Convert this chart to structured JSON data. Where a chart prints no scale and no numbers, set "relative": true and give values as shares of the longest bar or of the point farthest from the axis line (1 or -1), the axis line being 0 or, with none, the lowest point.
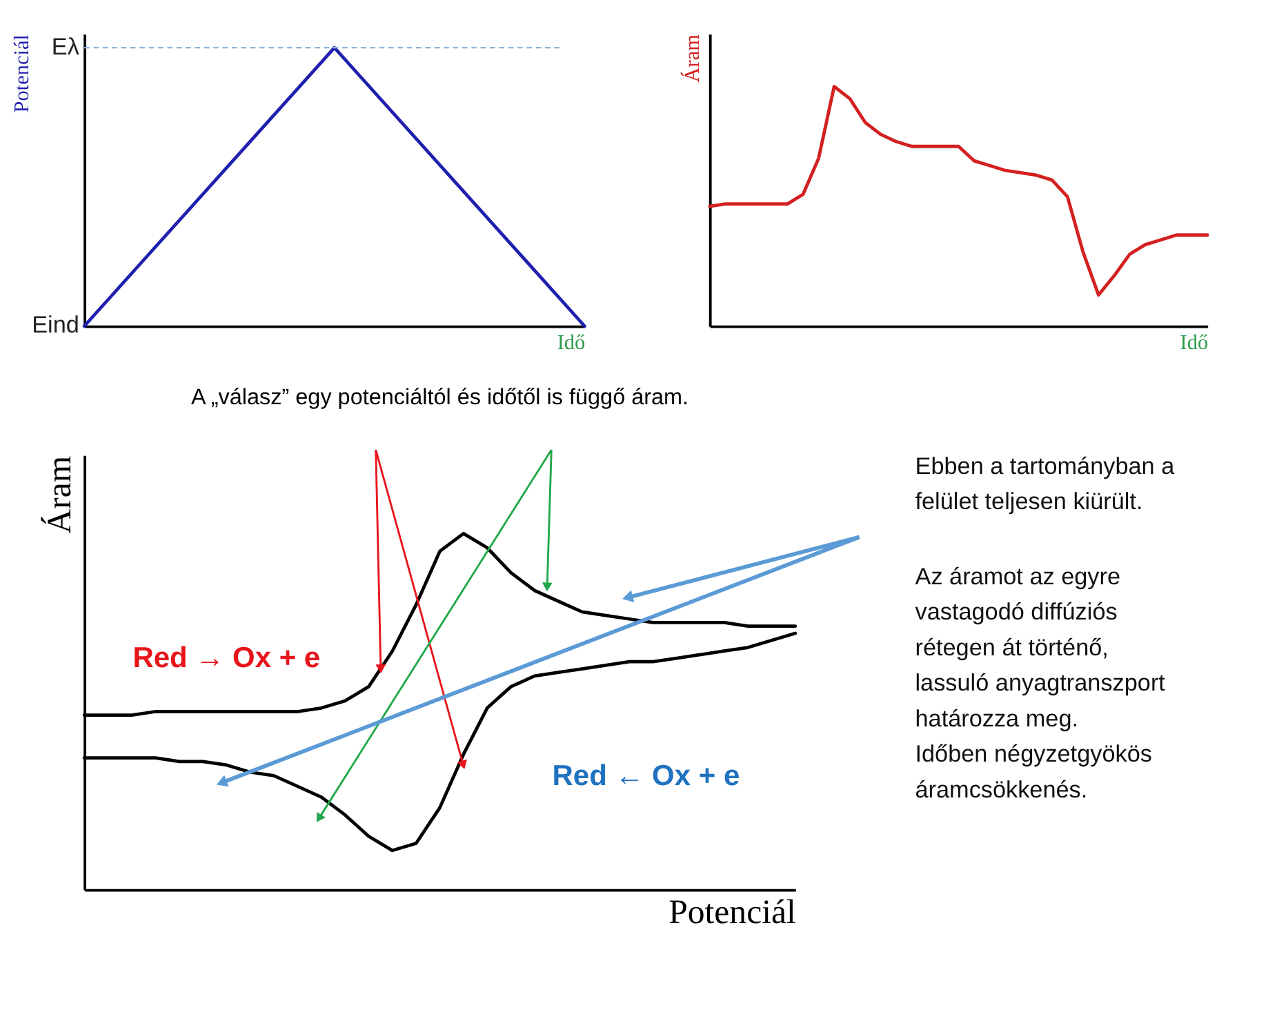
{
  "chart_data": [
    {
      "type": "line",
      "categories": [
        null,
        null,
        null
      ],
      "values": [
        0,
        1,
        0
      ],
      "color": "#1f1fb0",
      "relative": true,
      "annotations": [
        "Eind",
        "Eλ"
      ],
      "xlabel": "Idő",
      "ylabel": "Potenciál",
      "ref_lines": [
        {
          "axis": "y",
          "value": 1,
          "color": "#8fb3d9",
          "line_style": "dashed"
        }
      ]
    },
    {
      "type": "line",
      "relative": true,
      "categories": [
        null,
        null,
        null,
        null,
        null,
        null,
        null,
        null,
        null,
        null,
        null,
        null,
        null,
        null,
        null,
        null,
        null,
        null,
        null,
        null,
        null,
        null,
        null,
        null,
        null,
        null,
        null,
        null,
        null,
        null,
        null,
        null,
        null
      ],
      "values": [
        0.5,
        0.51,
        0.51,
        0.51,
        0.51,
        0.51,
        0.55,
        0.7,
        1.0,
        0.95,
        0.85,
        0.8,
        0.77,
        0.75,
        0.75,
        0.75,
        0.75,
        0.69,
        0.67,
        0.65,
        0.64,
        0.63,
        0.61,
        0.54,
        0.31,
        0.13,
        0.21,
        0.3,
        0.34,
        0.36,
        0.38,
        0.38,
        0.38
      ],
      "color": "#d42020",
      "xlabel": "Idő",
      "ylabel": "Áram"
    },
    {
      "type": "line",
      "relative": true,
      "title": "A „válasz” egy potenciáltól és időtől is függő áram.",
      "categories": [
        null,
        null,
        null,
        null,
        null,
        null,
        null,
        null,
        null,
        null,
        null,
        null,
        null,
        null,
        null,
        null,
        null,
        null,
        null,
        null,
        null,
        null,
        null,
        null,
        null,
        null,
        null,
        null,
        null,
        null,
        null
      ],
      "series": [
        {
          "color": "#000000",
          "values": [
            0.49,
            0.49,
            0.49,
            0.5,
            0.5,
            0.5,
            0.5,
            0.5,
            0.5,
            0.5,
            0.51,
            0.53,
            0.57,
            0.67,
            0.8,
            0.95,
            1.0,
            0.96,
            0.89,
            0.84,
            0.81,
            0.78,
            0.77,
            0.76,
            0.75,
            0.75,
            0.75,
            0.75,
            0.74,
            0.74,
            0.74
          ]
        },
        {
          "color": "#000000",
          "values": [
            0.37,
            0.37,
            0.37,
            0.37,
            0.36,
            0.36,
            0.35,
            0.33,
            0.32,
            0.29,
            0.26,
            0.21,
            0.15,
            0.11,
            0.13,
            0.23,
            0.38,
            0.51,
            0.57,
            0.6,
            0.61,
            0.62,
            0.63,
            0.64,
            0.64,
            0.65,
            0.66,
            0.67,
            0.68,
            0.7,
            0.72
          ]
        }
      ],
      "annotations": [
        "Red → Ox + e",
        "Red ← Ox + e"
      ],
      "xlabel": "Potenciál",
      "ylabel": "Áram"
    },
    {
      "type": "other",
      "annotations": [
        "Ebben a tartományban a\nfelület teljesen kiürült.",
        "Az áramot az egyre\nvastagodó diffúziós\nrétegen át történő,\nlassuló anyagtranszport\nhatározza meg.\nIdőben négyzetgyökös\náramcsökkenés."
      ]
    }
  ]
}
